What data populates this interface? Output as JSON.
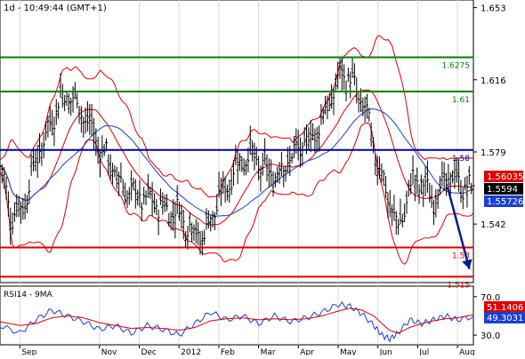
{
  "header": "1d - 10:49:44 (GMT+1)",
  "chart_data": [
    {
      "type": "ohlc",
      "panel": "price",
      "x_labels": [
        "Sep",
        "Nov",
        "Dec",
        "2012",
        "Feb",
        "Mar",
        "Apr",
        "May",
        "Jun",
        "Jul",
        "Aug"
      ],
      "x_label_months": [
        0,
        2,
        3,
        4,
        5,
        6,
        7,
        8,
        9,
        10,
        11
      ],
      "x_range_months": [
        -0.5,
        11.4
      ],
      "y_axis_side": "right",
      "ylim": [
        1.512,
        1.656
      ],
      "y_ticks": [
        1.653,
        1.616,
        1.579,
        1.542
      ],
      "grid": "vertical",
      "close_approx": [
        [
          -0.5,
          1.572
        ],
        [
          -0.2,
          1.546
        ],
        [
          0.1,
          1.552
        ],
        [
          0.4,
          1.575
        ],
        [
          0.7,
          1.59
        ],
        [
          1.0,
          1.606
        ],
        [
          1.3,
          1.608
        ],
        [
          1.6,
          1.598
        ],
        [
          2.0,
          1.582
        ],
        [
          2.3,
          1.572
        ],
        [
          2.6,
          1.56
        ],
        [
          3.0,
          1.556
        ],
        [
          3.3,
          1.554
        ],
        [
          3.6,
          1.55
        ],
        [
          4.0,
          1.548
        ],
        [
          4.3,
          1.54
        ],
        [
          4.6,
          1.535
        ],
        [
          4.9,
          1.55
        ],
        [
          5.2,
          1.562
        ],
        [
          5.5,
          1.574
        ],
        [
          5.8,
          1.578
        ],
        [
          6.1,
          1.57
        ],
        [
          6.4,
          1.566
        ],
        [
          6.7,
          1.574
        ],
        [
          7.0,
          1.58
        ],
        [
          7.3,
          1.585
        ],
        [
          7.6,
          1.596
        ],
        [
          7.9,
          1.61
        ],
        [
          8.1,
          1.62
        ],
        [
          8.3,
          1.616
        ],
        [
          8.5,
          1.608
        ],
        [
          8.7,
          1.6
        ],
        [
          8.9,
          1.58
        ],
        [
          9.2,
          1.56
        ],
        [
          9.4,
          1.545
        ],
        [
          9.5,
          1.54
        ],
        [
          9.7,
          1.552
        ],
        [
          9.9,
          1.566
        ],
        [
          10.2,
          1.56
        ],
        [
          10.4,
          1.555
        ],
        [
          10.7,
          1.565
        ],
        [
          11.0,
          1.565
        ],
        [
          11.2,
          1.56
        ],
        [
          11.4,
          1.5594
        ]
      ],
      "horizontal_levels": [
        {
          "label": "1.6275",
          "value": 1.6275,
          "color": "#008000"
        },
        {
          "label": "1.61",
          "value": 1.61,
          "color": "#008000"
        },
        {
          "label": "1.58",
          "value": 1.58,
          "color": "#0000a0"
        },
        {
          "label": "1.53",
          "value": 1.53,
          "color": "#dd0000"
        },
        {
          "label": "1.515",
          "value": 1.515,
          "color": "#dd0000"
        }
      ],
      "price_tags": [
        {
          "label": "1.56035",
          "value": 1.56035,
          "color": "#dd0000"
        },
        {
          "label": "1.5594",
          "value": 1.5594,
          "color": "#000000"
        },
        {
          "label": "1.55726",
          "value": 1.55726,
          "color": "#1a3fd0"
        }
      ],
      "forecast_arrow": {
        "from": [
          10.75,
          1.561
        ],
        "to": [
          11.3,
          1.519
        ],
        "color": "#0a1a8a"
      },
      "colors": {
        "bars": "#000000",
        "bollinger": "#dd0000",
        "moving_average": "#1a3fd0"
      }
    },
    {
      "type": "line",
      "panel": "oscillator",
      "title": "RSI14 - 9MA",
      "ylim": [
        20,
        80
      ],
      "y_ticks": [
        70.0,
        30.0
      ],
      "latest": [
        {
          "label": "51.1406",
          "value": 51.1406,
          "color": "#dd0000"
        },
        {
          "label": "49.3031",
          "value": 49.3031,
          "color": "#1a3fd0"
        }
      ],
      "series": [
        {
          "name": "RSI14",
          "color": "#1a3fd0",
          "points": [
            [
              -0.5,
              40
            ],
            [
              0.0,
              32
            ],
            [
              0.4,
              46
            ],
            [
              0.8,
              56
            ],
            [
              1.2,
              50
            ],
            [
              1.6,
              44
            ],
            [
              2.0,
              36
            ],
            [
              2.4,
              40
            ],
            [
              2.8,
              32
            ],
            [
              3.2,
              40
            ],
            [
              3.6,
              36
            ],
            [
              4.0,
              30
            ],
            [
              4.4,
              42
            ],
            [
              4.8,
              54
            ],
            [
              5.2,
              46
            ],
            [
              5.6,
              50
            ],
            [
              6.0,
              42
            ],
            [
              6.4,
              50
            ],
            [
              6.8,
              44
            ],
            [
              7.2,
              48
            ],
            [
              7.6,
              54
            ],
            [
              8.0,
              62
            ],
            [
              8.3,
              60
            ],
            [
              8.6,
              52
            ],
            [
              8.9,
              40
            ],
            [
              9.1,
              30
            ],
            [
              9.3,
              26
            ],
            [
              9.5,
              32
            ],
            [
              9.8,
              46
            ],
            [
              10.1,
              42
            ],
            [
              10.4,
              46
            ],
            [
              10.7,
              50
            ],
            [
              11.0,
              46
            ],
            [
              11.4,
              49.3031
            ]
          ]
        },
        {
          "name": "9MA",
          "color": "#dd0000",
          "points": [
            [
              -0.5,
              44
            ],
            [
              0.0,
              40
            ],
            [
              0.4,
              42
            ],
            [
              0.8,
              48
            ],
            [
              1.2,
              50
            ],
            [
              1.6,
              48
            ],
            [
              2.0,
              43
            ],
            [
              2.4,
              40
            ],
            [
              2.8,
              37
            ],
            [
              3.2,
              38
            ],
            [
              3.6,
              37
            ],
            [
              4.0,
              35
            ],
            [
              4.4,
              38
            ],
            [
              4.8,
              45
            ],
            [
              5.2,
              47
            ],
            [
              5.6,
              48
            ],
            [
              6.0,
              46
            ],
            [
              6.4,
              47
            ],
            [
              6.8,
              46
            ],
            [
              7.2,
              47
            ],
            [
              7.6,
              50
            ],
            [
              8.0,
              55
            ],
            [
              8.3,
              58
            ],
            [
              8.6,
              56
            ],
            [
              8.9,
              50
            ],
            [
              9.1,
              42
            ],
            [
              9.3,
              35
            ],
            [
              9.5,
              32
            ],
            [
              9.8,
              38
            ],
            [
              10.1,
              42
            ],
            [
              10.4,
              45
            ],
            [
              10.7,
              47
            ],
            [
              11.0,
              48
            ],
            [
              11.4,
              51.1406
            ]
          ]
        }
      ]
    }
  ]
}
